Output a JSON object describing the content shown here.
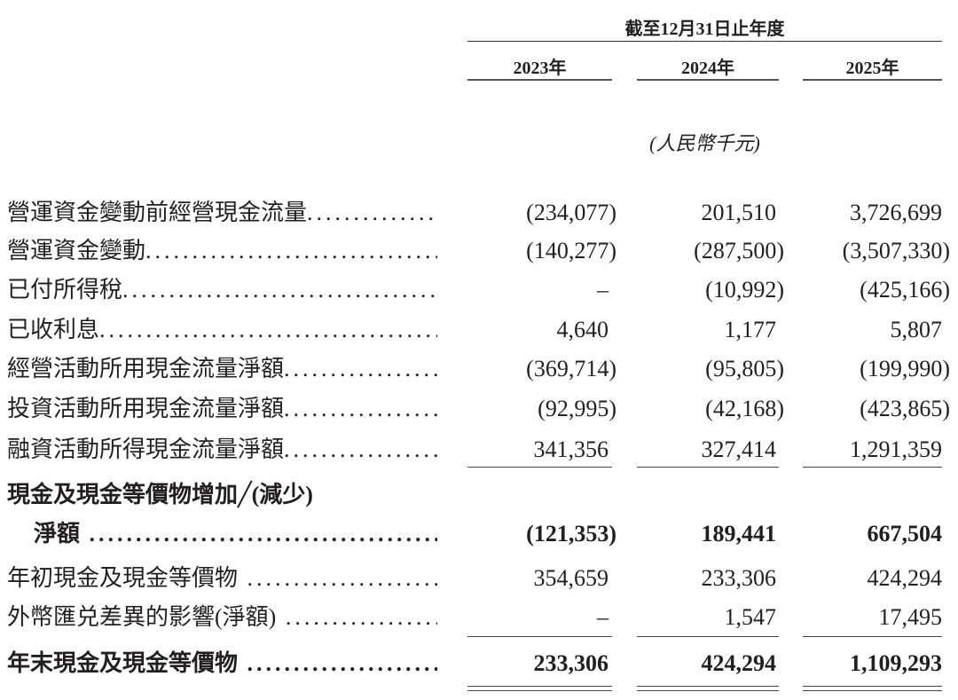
{
  "header": {
    "period": "截至12月31日止年度",
    "years": [
      "2023年",
      "2024年",
      "2025年"
    ],
    "unit": "(人民幣千元)"
  },
  "rows": [
    {
      "label": "營運資金變動前經營現金流量",
      "values": [
        "(234,077)",
        "201,510",
        "3,726,699"
      ],
      "bold": false
    },
    {
      "label": "營運資金變動",
      "values": [
        "(140,277)",
        "(287,500)",
        "(3,507,330)"
      ],
      "bold": false
    },
    {
      "label": "已付所得稅",
      "values": [
        "–",
        "(10,992)",
        "(425,166)"
      ],
      "bold": false
    },
    {
      "label": "已收利息",
      "values": [
        "4,640",
        "1,177",
        "5,807"
      ],
      "bold": false
    },
    {
      "label": "經營活動所用現金流量淨額",
      "values": [
        "(369,714)",
        "(95,805)",
        "(199,990)"
      ],
      "bold": false
    },
    {
      "label": "投資活動所用現金流量淨額",
      "values": [
        "(92,995)",
        "(42,168)",
        "(423,865)"
      ],
      "bold": false
    },
    {
      "label": "融資活動所得現金流量淨額",
      "values": [
        "341,356",
        "327,414",
        "1,291,359"
      ],
      "bold": false
    },
    {
      "label": "現金及現金等價物增加╱(減少)",
      "values": [],
      "bold": true
    },
    {
      "label": "淨額",
      "values": [
        "(121,353)",
        "189,441",
        "667,504"
      ],
      "bold": true
    },
    {
      "label": "年初現金及現金等價物",
      "values": [
        "354,659",
        "233,306",
        "424,294"
      ],
      "bold": false
    },
    {
      "label": "外幣匯兑差異的影響(淨額)",
      "values": [
        "–",
        "1,547",
        "17,495"
      ],
      "bold": false
    },
    {
      "label": "年末現金及現金等價物",
      "values": [
        "233,306",
        "424,294",
        "1,109,293"
      ],
      "bold": true
    }
  ]
}
